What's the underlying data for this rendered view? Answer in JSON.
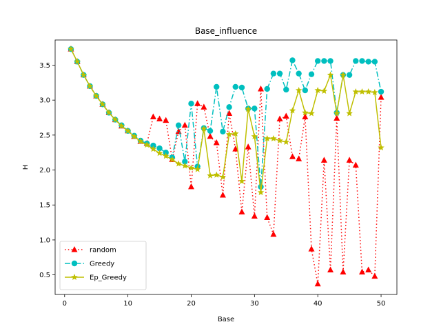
{
  "chart_data": {
    "type": "line",
    "title": "Base_influence",
    "xlabel": "Base",
    "ylabel": "H",
    "xlim": [
      -1.5,
      52.5
    ],
    "ylim": [
      0.22,
      3.86
    ],
    "xticks": [
      0,
      10,
      20,
      30,
      40,
      50
    ],
    "yticks": [
      0.5,
      1.0,
      1.5,
      2.0,
      2.5,
      3.0,
      3.5
    ],
    "ytick_labels": [
      "0.5",
      "1.0",
      "1.5",
      "2.0",
      "2.5",
      "3.0",
      "3.5"
    ],
    "grid": false,
    "legend_position": "lower-left",
    "x": [
      1,
      2,
      3,
      4,
      5,
      6,
      7,
      8,
      9,
      10,
      11,
      12,
      13,
      14,
      15,
      16,
      17,
      18,
      19,
      20,
      21,
      22,
      23,
      24,
      25,
      26,
      27,
      28,
      29,
      30,
      31,
      32,
      33,
      34,
      35,
      36,
      37,
      38,
      39,
      40,
      41,
      42,
      43,
      44,
      45,
      46,
      47,
      48,
      49,
      50
    ],
    "series": [
      {
        "name": "random",
        "color": "#ff0000",
        "linestyle": "dotted",
        "marker": "triangle",
        "values": [
          3.73,
          3.55,
          3.36,
          3.2,
          3.06,
          2.94,
          2.82,
          2.72,
          2.63,
          2.56,
          2.48,
          2.41,
          2.38,
          2.76,
          2.73,
          2.71,
          2.15,
          2.55,
          2.64,
          1.76,
          2.95,
          2.9,
          2.48,
          2.39,
          1.64,
          2.81,
          2.3,
          1.4,
          2.33,
          1.34,
          3.16,
          1.32,
          1.08,
          2.73,
          2.77,
          2.19,
          2.16,
          2.76,
          0.87,
          0.37,
          2.14,
          0.57,
          2.74,
          0.54,
          2.14,
          2.07,
          0.54,
          0.57,
          0.48,
          3.04
        ]
      },
      {
        "name": "Greedy",
        "color": "#00bfbf",
        "linestyle": "dashdot",
        "marker": "circle",
        "values": [
          3.73,
          3.55,
          3.36,
          3.2,
          3.06,
          2.94,
          2.82,
          2.72,
          2.64,
          2.56,
          2.49,
          2.42,
          2.38,
          2.35,
          2.31,
          2.25,
          2.18,
          2.64,
          2.12,
          2.95,
          2.05,
          2.6,
          2.56,
          3.19,
          2.55,
          2.9,
          3.19,
          3.18,
          2.88,
          2.88,
          1.76,
          3.16,
          3.38,
          3.38,
          3.15,
          3.57,
          3.38,
          3.14,
          3.37,
          3.56,
          3.56,
          3.56,
          2.82,
          3.36,
          3.36,
          3.56,
          3.56,
          3.55,
          3.55,
          3.12
        ]
      },
      {
        "name": "Ep_Greedy",
        "color": "#bfbf00",
        "linestyle": "solid",
        "marker": "star",
        "values": [
          3.73,
          3.55,
          3.36,
          3.2,
          3.06,
          2.94,
          2.82,
          2.72,
          2.63,
          2.56,
          2.48,
          2.41,
          2.36,
          2.3,
          2.24,
          2.2,
          2.15,
          2.09,
          2.06,
          2.03,
          2.01,
          2.59,
          1.92,
          1.93,
          1.9,
          2.51,
          2.52,
          1.84,
          2.87,
          2.48,
          1.68,
          2.45,
          2.45,
          2.42,
          2.4,
          2.85,
          3.14,
          2.82,
          2.81,
          3.14,
          3.13,
          3.36,
          2.81,
          3.36,
          2.81,
          3.12,
          3.12,
          3.12,
          3.11,
          2.32
        ]
      }
    ]
  }
}
